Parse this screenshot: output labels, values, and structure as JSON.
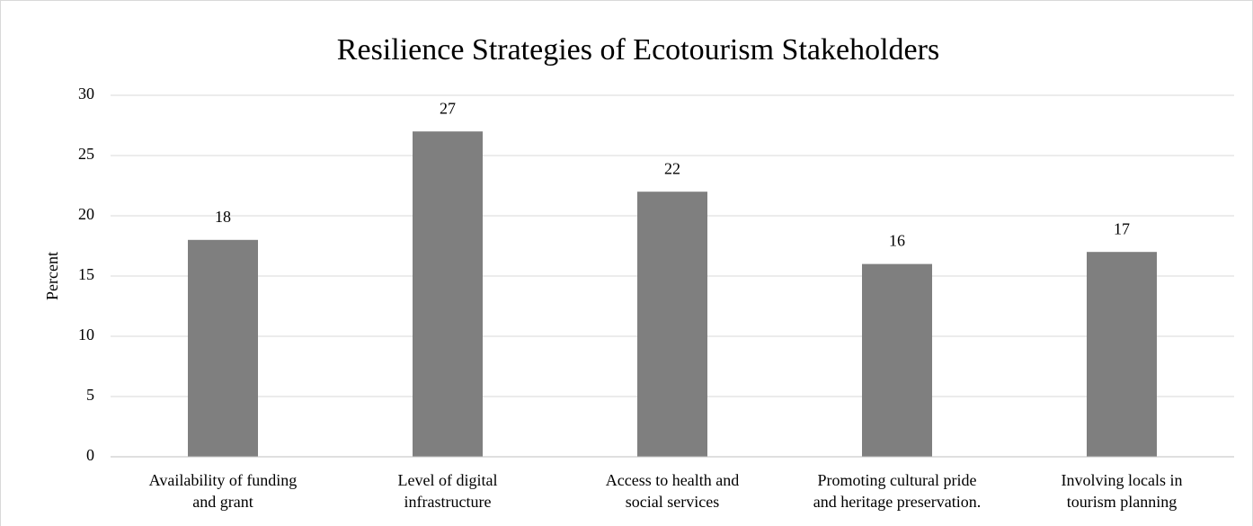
{
  "chart_data": {
    "type": "bar",
    "title": "Resilience Strategies of Ecotourism Stakeholders",
    "y_label": "Percent",
    "categories": [
      "Availability of funding\nand grant",
      "Level of digital\ninfrastructure",
      "Access to health and\nsocial services",
      "Promoting cultural pride\nand heritage preservation.",
      "Involving locals in\ntourism planning"
    ],
    "values": [
      18,
      27,
      22,
      16,
      17
    ],
    "color": "#7f7f7f",
    "ylim": [
      0,
      30
    ],
    "yticks": [
      0,
      5,
      10,
      15,
      20,
      25,
      30
    ],
    "grid": true,
    "data_labels": true
  }
}
